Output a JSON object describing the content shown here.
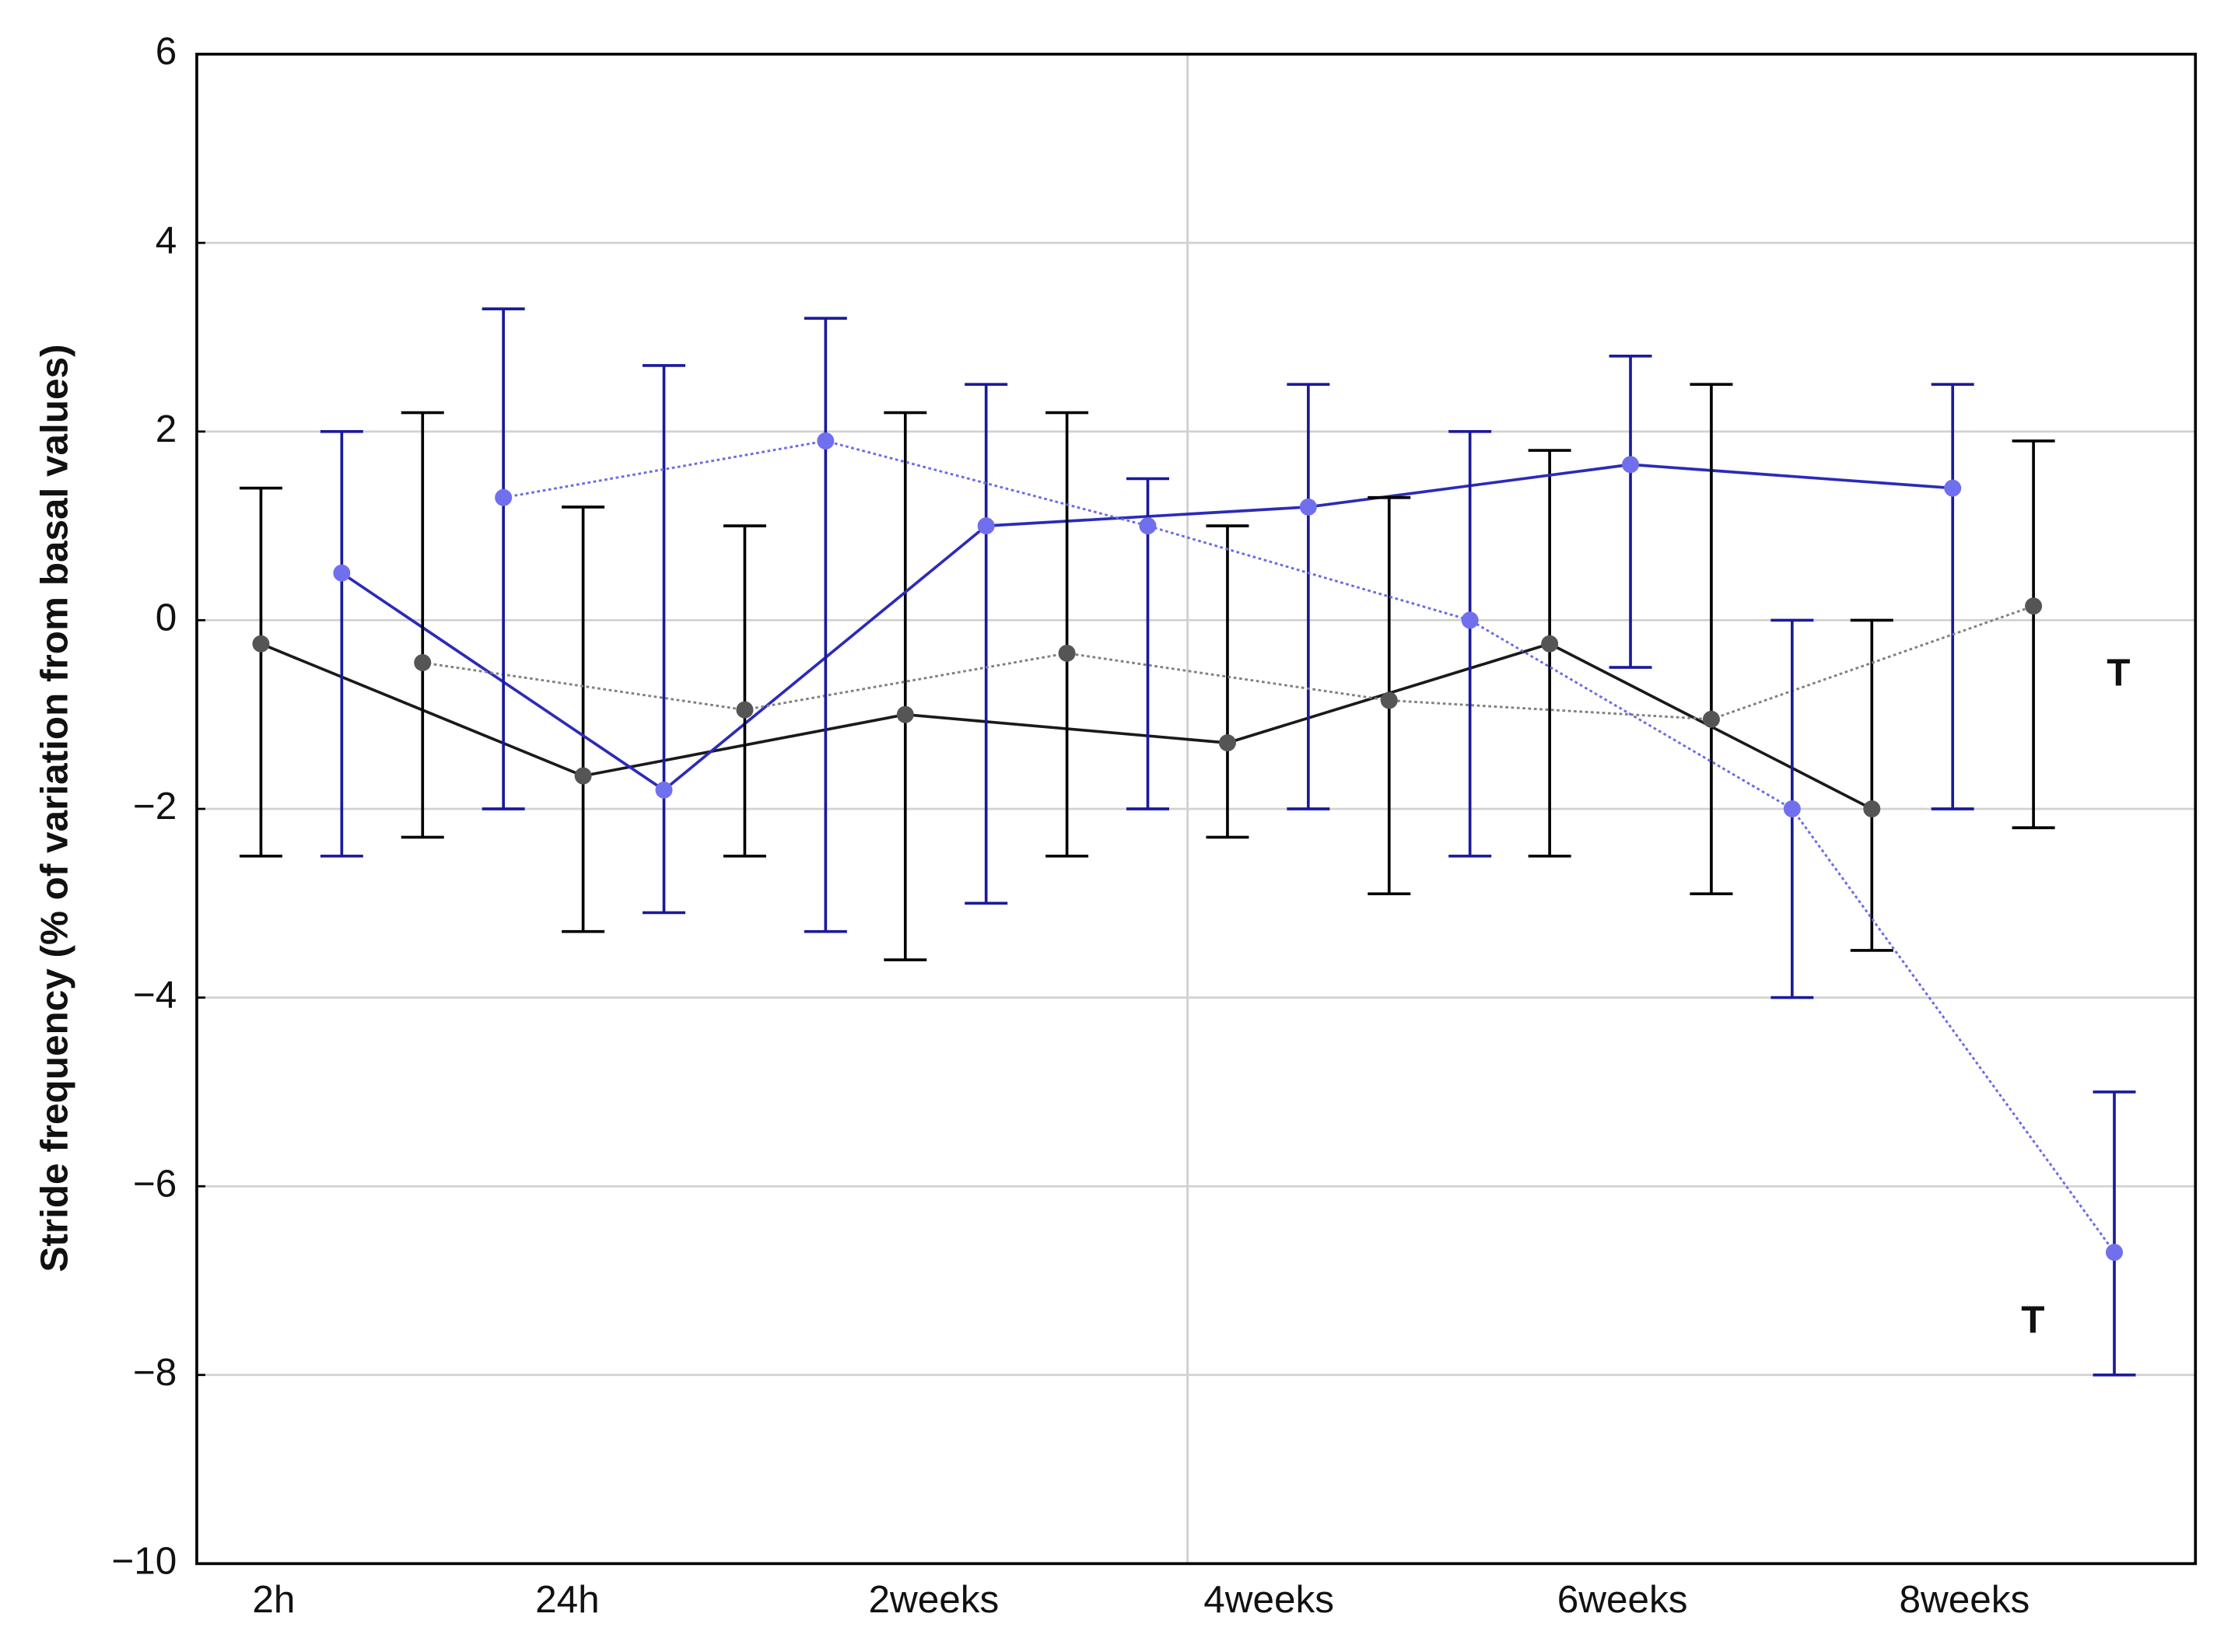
{
  "chart_data": {
    "type": "errorbar-line",
    "y_label": "Stride frequency (% of variation from basal values)",
    "categories": [
      "2h",
      "24h",
      "2weeks",
      "4weeks",
      "6weeks",
      "8weeks"
    ],
    "ylim": [
      -10,
      6
    ],
    "yticks": [
      {
        "value": -10,
        "label": "−10"
      },
      {
        "value": -8,
        "label": "−8"
      },
      {
        "value": -6,
        "label": "−6"
      },
      {
        "value": -4,
        "label": "−4"
      },
      {
        "value": -2,
        "label": "−2"
      },
      0,
      2,
      4,
      6
    ],
    "grid": true,
    "series": [
      {
        "color": "#1a1a1a",
        "marker_color": "#555555",
        "error_color": "#000000",
        "line_style": "solid",
        "values": [
          -0.25,
          -1.65,
          -1.0,
          -1.3,
          -0.25,
          -2.0
        ],
        "upper": [
          1.4,
          1.2,
          2.2,
          1.0,
          1.8,
          0
        ],
        "lower": [
          -2.5,
          -3.3,
          -3.6,
          -2.3,
          -2.5,
          -3.5
        ]
      },
      {
        "color": "#2b2bb8",
        "marker_color": "#7070ee",
        "error_color": "#1a1a9c",
        "line_style": "solid",
        "values": [
          0.5,
          -1.8,
          1.0,
          1.2,
          1.65,
          1.4
        ],
        "upper": [
          2.0,
          2.7,
          2.5,
          2.5,
          2.8,
          2.5
        ],
        "lower": [
          -2.5,
          -3.1,
          -3.0,
          -2.0,
          -0.5,
          -2.0
        ]
      },
      {
        "color": "#808080",
        "marker_color": "#555555",
        "error_color": "#000000",
        "line_style": "dotted",
        "values": [
          -0.45,
          -0.95,
          -0.35,
          -0.85,
          -1.05,
          0.15
        ],
        "upper": [
          2.2,
          1.0,
          2.2,
          1.3,
          2.5,
          1.9
        ],
        "lower": [
          -2.3,
          -2.5,
          -2.5,
          -2.9,
          -2.9,
          -2.2
        ]
      },
      {
        "color": "#6a6ae8",
        "marker_color": "#7070ee",
        "error_color": "#1a1a9c",
        "line_style": "dotted",
        "values": [
          1.3,
          1.9,
          1.0,
          0.0,
          -2.0,
          -6.7
        ],
        "upper": [
          3.3,
          3.2,
          1.5,
          2.0,
          0,
          -5.0
        ],
        "lower": [
          -2.0,
          -3.3,
          -2.0,
          -2.5,
          -4.0,
          -8.0
        ]
      }
    ],
    "annotations": [
      {
        "text": "T",
        "color": "#e00000"
      },
      {
        "text": "T",
        "color": "#1a1ab8"
      }
    ]
  }
}
